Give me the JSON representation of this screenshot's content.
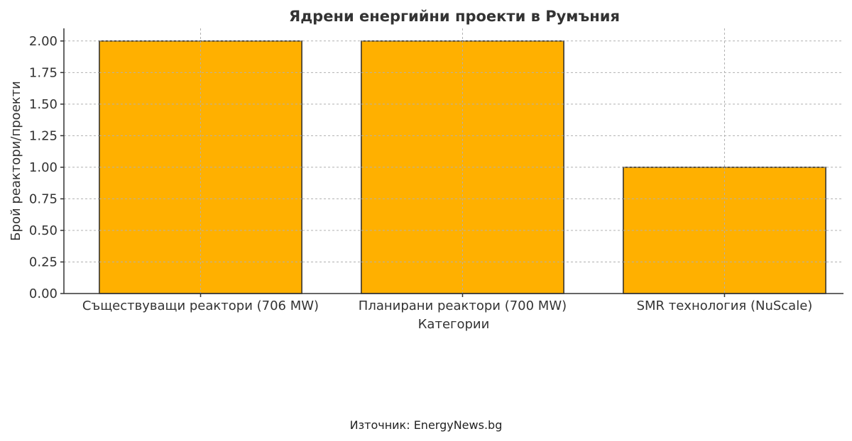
{
  "chart_data": {
    "type": "bar",
    "title": "Ядрени енергийни проекти в Румъния",
    "xlabel": "Категории",
    "ylabel": "Брой реактори/проекти",
    "categories": [
      "Съществуващи реактори (706 MW)",
      "Планирани реактори (700 MW)",
      "SMR технология (NuScale)"
    ],
    "values": [
      2,
      2,
      1
    ],
    "ylim": [
      0,
      2.1
    ],
    "yticks": [
      "0.00",
      "0.25",
      "0.50",
      "0.75",
      "1.00",
      "1.25",
      "1.50",
      "1.75",
      "2.00"
    ],
    "grid": true,
    "bar_color": "#ffb000"
  },
  "source": "Източник: EnergyNews.bg"
}
